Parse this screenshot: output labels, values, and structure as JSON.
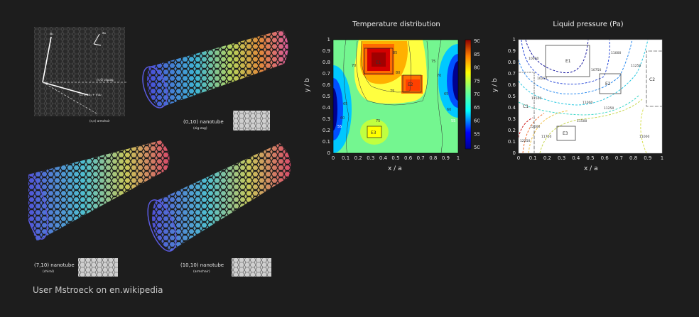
{
  "credit": "User Mstroeck on en.wikipedia",
  "nanotube": {
    "lattice_labels": {
      "a1": "a₁",
      "a2": "a₂",
      "zigzag": "(n,0) zigzag",
      "chiral_vector": "Cₕ = na₁ + ma₂",
      "armchair": "(n,n) armchair",
      "theta": "θ"
    },
    "tubes": [
      {
        "label": "(0,10)  nanotube",
        "sub": "(zig-zag)"
      },
      {
        "label": "(7,10)  nanotube",
        "sub": "(chiral)"
      },
      {
        "label": "(10,10)  nanotube",
        "sub": "(armchair)"
      }
    ]
  },
  "temperature_plot": {
    "title": "Temperature distribution",
    "xlabel": "x / a",
    "ylabel": "y / b",
    "x_ticks": [
      "0",
      "0.1",
      "0.2",
      "0.3",
      "0.4",
      "0.5",
      "0.6",
      "0.7",
      "0.8",
      "0.9",
      "1"
    ],
    "y_ticks": [
      "0",
      "0.1",
      "0.2",
      "0.3",
      "0.4",
      "0.5",
      "0.6",
      "0.7",
      "0.8",
      "0.9",
      "1"
    ],
    "colorbar_ticks": [
      "90",
      "85",
      "80",
      "75",
      "70",
      "65",
      "60",
      "55",
      "50"
    ],
    "contour_labels": [
      "70",
      "75",
      "80",
      "85",
      "65",
      "60",
      "55",
      "75",
      "70",
      "65",
      "60",
      "55",
      "75"
    ],
    "elements": [
      "E1",
      "E2",
      "E3"
    ]
  },
  "pressure_plot": {
    "title": "Liquid pressure (Pa)",
    "xlabel": "x / a",
    "ylabel": "y / b",
    "x_ticks": [
      "0",
      "0.1",
      "0.2",
      "0.3",
      "0.4",
      "0.5",
      "0.6",
      "0.7",
      "0.8",
      "0.9",
      "1"
    ],
    "y_ticks": [
      "0",
      "0.1",
      "0.2",
      "0.3",
      "0.4",
      "0.5",
      "0.6",
      "0.7",
      "0.8",
      "0.9",
      "1"
    ],
    "contour_labels": [
      "10000",
      "10250",
      "10750",
      "11000",
      "11000",
      "11250",
      "11500",
      "11750",
      "12000",
      "12250",
      "11500",
      "11250",
      "11000"
    ],
    "elements": [
      "E1",
      "E2",
      "E3",
      "C1",
      "C2"
    ]
  },
  "colors": {
    "background": "#1d1d1d",
    "credit_text": "#c8c8c8"
  }
}
